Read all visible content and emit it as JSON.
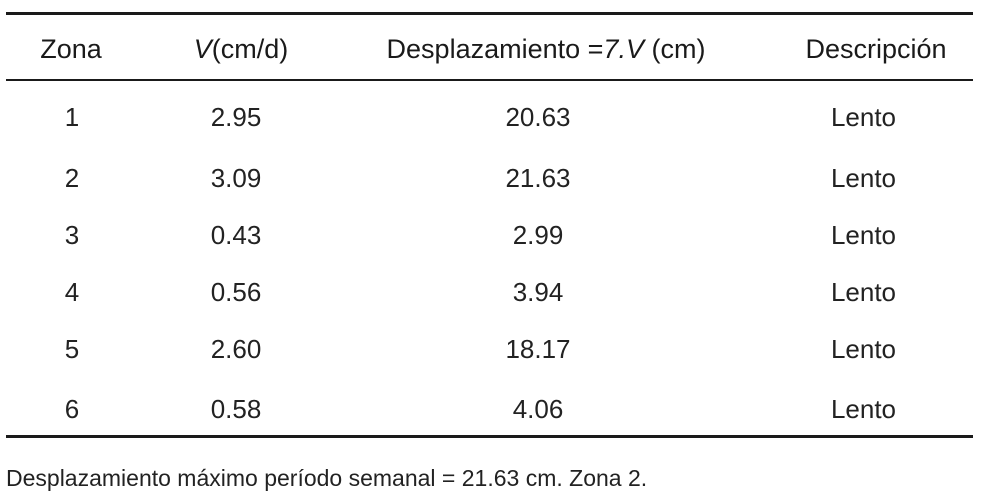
{
  "table": {
    "headers": {
      "zona": "Zona",
      "v_symbol": "V",
      "v_unit": "(cm/d)",
      "desp_prefix": "Desplazamiento =",
      "desp_formula": "7.V",
      "desp_unit": "(cm)",
      "descripcion": "Descripción"
    },
    "rows": [
      {
        "zona": "1",
        "v": "2.95",
        "desplazamiento": "20.63",
        "descripcion": "Lento"
      },
      {
        "zona": "2",
        "v": "3.09",
        "desplazamiento": "21.63",
        "descripcion": "Lento"
      },
      {
        "zona": "3",
        "v": "0.43",
        "desplazamiento": "2.99",
        "descripcion": "Lento"
      },
      {
        "zona": "4",
        "v": "0.56",
        "desplazamiento": "3.94",
        "descripcion": "Lento"
      },
      {
        "zona": "5",
        "v": "2.60",
        "desplazamiento": "18.17",
        "descripcion": "Lento"
      },
      {
        "zona": "6",
        "v": "0.58",
        "desplazamiento": "4.06",
        "descripcion": "Lento"
      }
    ]
  },
  "footnote": "Desplazamiento máximo período semanal = 21.63 cm. Zona 2."
}
